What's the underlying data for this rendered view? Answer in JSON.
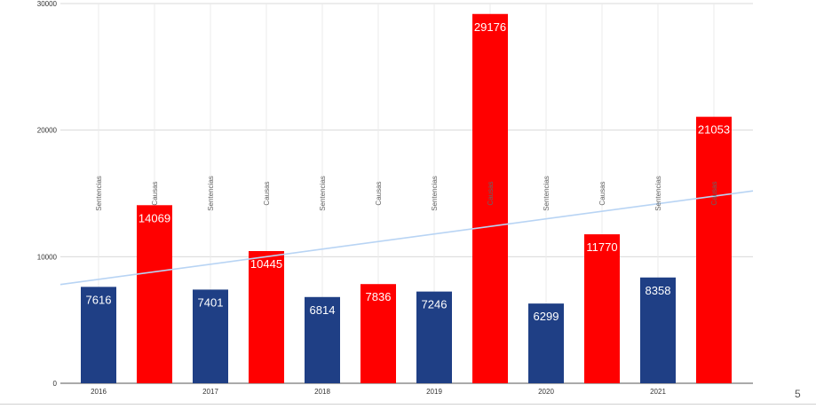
{
  "slide": {
    "page_number": "5"
  },
  "colors": {
    "sentencias": "#1f3f85",
    "causas": "#ff0000",
    "trend": "#b8d4f4",
    "grid": "#d9d9d9"
  },
  "chart_data": {
    "type": "bar",
    "title": "",
    "xlabel": "",
    "ylabel": "",
    "ylim": [
      0,
      30000
    ],
    "yticks": [
      0,
      10000,
      20000,
      30000
    ],
    "xtick_labels": [
      "2016",
      "2017",
      "2018",
      "2019",
      "2020",
      "2021"
    ],
    "grid": true,
    "legend": "none",
    "bars": [
      {
        "year": "2016",
        "series": "Sentencias",
        "value": 7616
      },
      {
        "year": "2016",
        "series": "Causas",
        "value": 14069
      },
      {
        "year": "2017",
        "series": "Sentencias",
        "value": 7401
      },
      {
        "year": "2017",
        "series": "Causas",
        "value": 10445
      },
      {
        "year": "2018",
        "series": "Sentencias",
        "value": 6814
      },
      {
        "year": "2018",
        "series": "Causas",
        "value": 7836
      },
      {
        "year": "2019",
        "series": "Sentencias",
        "value": 7246
      },
      {
        "year": "2019",
        "series": "Causas",
        "value": 29176
      },
      {
        "year": "2020",
        "series": "Sentencias",
        "value": 6299
      },
      {
        "year": "2020",
        "series": "Causas",
        "value": 11770
      },
      {
        "year": "2021",
        "series": "Sentencias",
        "value": 8358
      },
      {
        "year": "2021",
        "series": "Causas",
        "value": 21053
      }
    ],
    "trendline": {
      "start_value": 7800,
      "end_value": 15200
    }
  }
}
